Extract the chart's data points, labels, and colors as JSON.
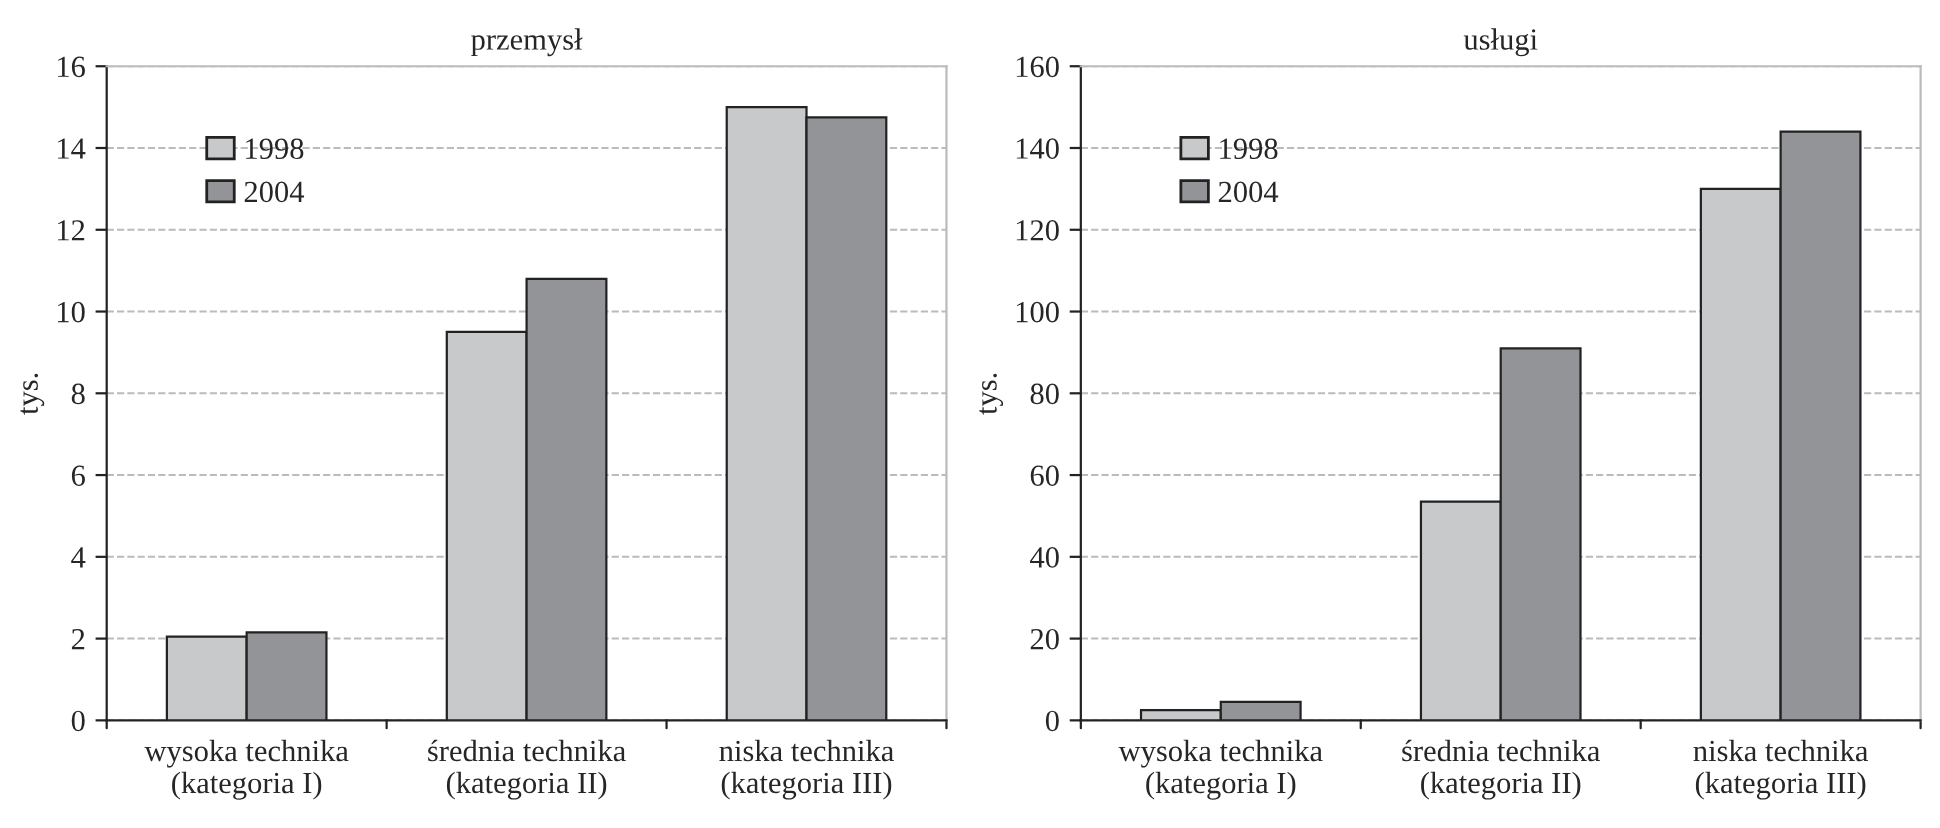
{
  "chart_data": [
    {
      "type": "bar",
      "title": "przemysł",
      "ylabel": "tys.",
      "categories": [
        "wysoka technika\n(kategoria I)",
        "średnia technika\n(kategoria II)",
        "niska technika\n(kategoria III)"
      ],
      "series": [
        {
          "name": "1998",
          "color": "#c8c9cb",
          "values": [
            2.05,
            9.5,
            15.0
          ]
        },
        {
          "name": "2004",
          "color": "#939498",
          "values": [
            2.15,
            10.8,
            14.75
          ]
        }
      ],
      "ylim": [
        0,
        16
      ],
      "yticks": [
        0,
        2,
        4,
        6,
        8,
        10,
        12,
        14,
        16
      ],
      "grid": "y",
      "legend": "top left"
    },
    {
      "type": "bar",
      "title": "usługi",
      "ylabel": "tys.",
      "categories": [
        "wysoka technika\n(kategoria I)",
        "średnia technika\n(kategoria II)",
        "niska technika\n(kategoria III)"
      ],
      "series": [
        {
          "name": "1998",
          "color": "#c8c9cb",
          "values": [
            2.5,
            53.5,
            130
          ]
        },
        {
          "name": "2004",
          "color": "#939498",
          "values": [
            4.5,
            91,
            144
          ]
        }
      ],
      "ylim": [
        0,
        160
      ],
      "yticks": [
        0,
        20,
        40,
        60,
        80,
        100,
        120,
        140,
        160
      ],
      "grid": "y",
      "legend": "top left"
    }
  ]
}
